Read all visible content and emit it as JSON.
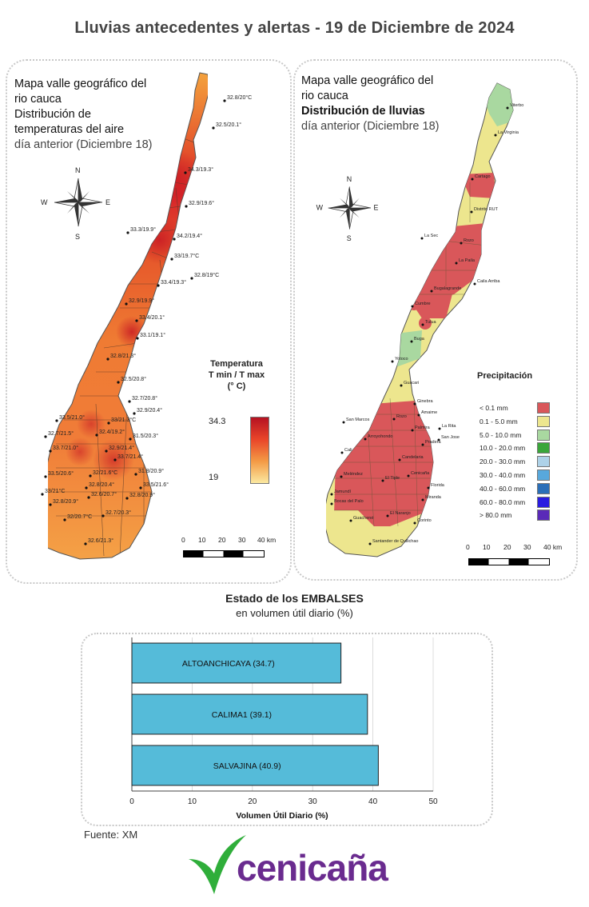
{
  "title": "Lluvias antecedentes y alertas - 19 de Diciembre de 2024",
  "temp_map": {
    "title_lines": [
      "Mapa valle geográfico del",
      "rio cauca",
      "Distribución de",
      "temperaturas del aire"
    ],
    "subtitle": "día anterior (Diciembre 18)",
    "compass": {
      "n": "N",
      "s": "S",
      "e": "E",
      "w": "W"
    },
    "legend_title_lines": [
      "Temperatura",
      "T min / T max",
      "(° C)"
    ],
    "legend_max": "34.3",
    "legend_min": "19",
    "scale_labels": [
      "0",
      "10",
      "20",
      "30",
      "40 km"
    ],
    "station_labels": [
      "32.8/20°C",
      "32.5/20.1°",
      "34.3/19.3°",
      "32.9/19.6°",
      "33.3/19.9°",
      "34.2/19.4°",
      "33/19.7°C",
      "32.8/19°C",
      "33.4/19.3°",
      "32.9/19.9°",
      "33.4/20.1°",
      "33.1/19.1°",
      "32.8/21.3°",
      "32.5/20.8°",
      "32.7/20.8°",
      "32.9/20.4°",
      "33.5/21.0°",
      "33/21.3°C",
      "32.7/21.5°",
      "32.4/19.2°",
      "31.5/20.3°",
      "33.7/21.0°",
      "32.9/21.4°",
      "33.7/21.4°",
      "31.8/20.9°",
      "33.5/20.6°",
      "32/21.6°C",
      "33.5/21.6°",
      "32.8/20.4°",
      "33/21°C",
      "32.6/20.7°",
      "32.8/20.9°",
      "32.8/20.9°",
      "32/20.7°C",
      "32.7/20.3°",
      "32.6/21.3°"
    ]
  },
  "rain_map": {
    "title_lines": [
      "Mapa valle geográfico del",
      "rio cauca"
    ],
    "title_bold": "Distribución de lluvias",
    "subtitle": "día anterior (Diciembre 18)",
    "compass": {
      "n": "N",
      "s": "S",
      "e": "E",
      "w": "W"
    },
    "legend_title": "Precipitación",
    "legend": [
      {
        "label": "< 0.1 mm",
        "color": "#d9575a"
      },
      {
        "label": "0.1 - 5.0 mm",
        "color": "#ede68e"
      },
      {
        "label": "5.0 - 10.0 mm",
        "color": "#a9d8a0"
      },
      {
        "label": "10.0 - 20.0 mm",
        "color": "#3aa63a"
      },
      {
        "label": "20.0 - 30.0 mm",
        "color": "#aed2e8"
      },
      {
        "label": "30.0 - 40.0 mm",
        "color": "#58a8dc"
      },
      {
        "label": "40.0 - 60.0 mm",
        "color": "#2b6fb8"
      },
      {
        "label": "60.0 - 80.0 mm",
        "color": "#2a1ce0"
      },
      {
        "label": "> 80.0 mm",
        "color": "#5a2ab8"
      }
    ],
    "scale_labels": [
      "0",
      "10",
      "20",
      "30",
      "40 km"
    ],
    "places": [
      "Viterbo",
      "La Virginia",
      "Cartago",
      "Distrito RUT",
      "La Sec",
      "Rozo",
      "La Paila",
      "Caila Arriba",
      "Bugalagrande",
      "Cumbre",
      "Tulua",
      "Buga",
      "Yotoco",
      "Guacari",
      "Ginebra",
      "Amaime",
      "San Marcos",
      "Rozo",
      "La Rita",
      "Palmira",
      "San Jose",
      "Arroyohondo",
      "Pradera",
      "Cali",
      "Candelaria",
      "Meléndez",
      "El Tiple",
      "Cenicaña",
      "Florida",
      "Jamundí",
      "Bocas del Palo",
      "Miranda",
      "El Naranjo",
      "Corinto",
      "Guachené",
      "Santander de Quilichao"
    ]
  },
  "reservoirs": {
    "title": "Estado de los EMBALSES",
    "subtitle": "en volumen útil diario (%)",
    "xlabel": "Volumen Útil Diario (%)",
    "x_ticks": [
      "0",
      "10",
      "20",
      "30",
      "40",
      "50"
    ]
  },
  "chart_data": {
    "type": "bar",
    "orientation": "horizontal",
    "title": "Estado de los EMBALSES",
    "subtitle": "en volumen útil diario (%)",
    "xlabel": "Volumen Útil Diario (%)",
    "ylabel": "",
    "categories": [
      "ALTOANCHICAYA",
      "CALIMA1",
      "SALVAJINA"
    ],
    "labels": [
      "ALTOANCHICAYA (34.7)",
      "CALIMA1 (39.1)",
      "SALVAJINA (40.9)"
    ],
    "values": [
      34.7,
      39.1,
      40.9
    ],
    "xlim": [
      0,
      50
    ],
    "grid": true,
    "bar_color": "#55bbd9"
  },
  "source": "Fuente: XM",
  "logo": {
    "text": "cenicaña",
    "leaf_color": "#2fae3a",
    "text_color": "#6a2b8f"
  }
}
